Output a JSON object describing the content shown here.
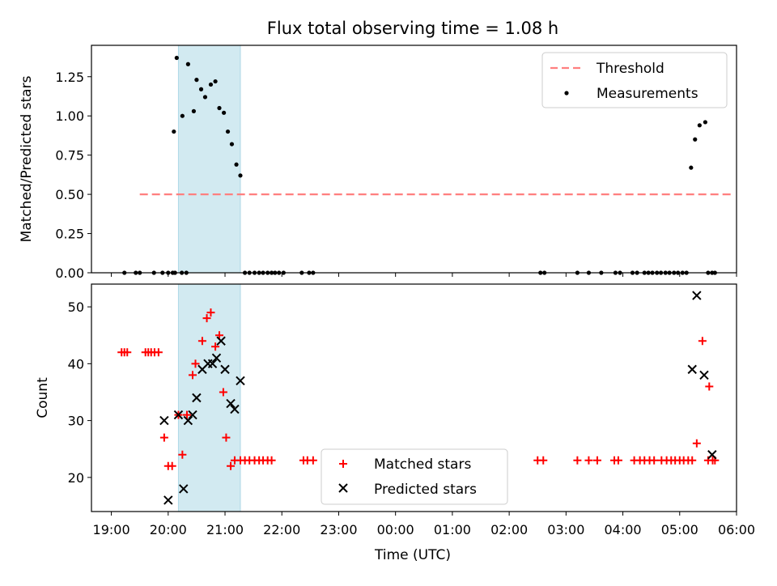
{
  "figure": {
    "title": "Flux total observing time = 1.08 h",
    "xlabel": "Time (UTC)"
  },
  "colors": {
    "threshold": "#ff7f7f",
    "measurements": "#000000",
    "matched": "#ff0000",
    "predicted": "#000000",
    "shade": "#add8e6"
  },
  "chart_data": [
    {
      "type": "scatter",
      "panel": "top",
      "ylabel": "Matched/Predicted stars",
      "x_unit": "hours since 19:00 UTC on the axis clock",
      "xlim": [
        -0.35,
        11.0
      ],
      "ylim": [
        0,
        1.45
      ],
      "x_ticks": [
        0,
        1,
        2,
        3,
        4,
        5,
        6,
        7,
        8,
        9,
        10,
        11
      ],
      "x_tick_labels": [
        "19:00",
        "20:00",
        "21:00",
        "22:00",
        "23:00",
        "00:00",
        "01:00",
        "02:00",
        "03:00",
        "04:00",
        "05:00",
        "06:00"
      ],
      "y_ticks": [
        0,
        0.25,
        0.5,
        0.75,
        1.0,
        1.25
      ],
      "y_tick_labels": [
        "0.00",
        "0.25",
        "0.50",
        "0.75",
        "1.00",
        "1.25"
      ],
      "shaded_span": [
        1.18,
        2.27
      ],
      "legend": {
        "position": "top-right",
        "entries": [
          "Threshold",
          "Measurements"
        ]
      },
      "threshold": {
        "name": "Threshold",
        "y": 0.5,
        "x": [
          0.5,
          10.9
        ]
      },
      "series": [
        {
          "name": "Measurements",
          "x": [
            0.23,
            0.43,
            0.5,
            0.75,
            0.9,
            1.0,
            1.08,
            1.12,
            1.24,
            1.32,
            1.1,
            1.15,
            1.25,
            1.35,
            1.45,
            1.5,
            1.58,
            1.65,
            1.75,
            1.83,
            1.9,
            1.98,
            2.05,
            2.12,
            2.2,
            2.27,
            2.35,
            2.43,
            2.52,
            2.6,
            2.67,
            2.75,
            2.82,
            2.88,
            2.95,
            3.03,
            3.35,
            3.48,
            3.55,
            7.55,
            7.62,
            8.2,
            8.4,
            8.62,
            8.87,
            8.95,
            9.17,
            9.25,
            9.38,
            9.45,
            9.52,
            9.6,
            9.67,
            9.75,
            9.82,
            9.9,
            9.97,
            10.05,
            10.12,
            10.2,
            10.27,
            10.35,
            10.45,
            10.5,
            10.57,
            10.62
          ],
          "y": [
            0,
            0,
            0,
            0,
            0,
            0,
            0,
            0,
            0,
            0,
            0.9,
            1.37,
            1.0,
            1.33,
            1.03,
            1.23,
            1.17,
            1.12,
            1.2,
            1.22,
            1.05,
            1.02,
            0.9,
            0.82,
            0.69,
            0.62,
            0,
            0,
            0,
            0,
            0,
            0,
            0,
            0,
            0,
            0,
            0,
            0,
            0,
            0,
            0,
            0,
            0,
            0,
            0,
            0,
            0,
            0,
            0,
            0,
            0,
            0,
            0,
            0,
            0,
            0,
            0,
            0,
            0,
            0.67,
            0.85,
            0.94,
            0.96,
            0,
            0,
            0
          ]
        }
      ]
    },
    {
      "type": "scatter",
      "panel": "bottom",
      "ylabel": "Count",
      "xlim": [
        -0.35,
        11.0
      ],
      "ylim": [
        14,
        54
      ],
      "x_ticks": [
        0,
        1,
        2,
        3,
        4,
        5,
        6,
        7,
        8,
        9,
        10,
        11
      ],
      "x_tick_labels": [
        "19:00",
        "20:00",
        "21:00",
        "22:00",
        "23:00",
        "00:00",
        "01:00",
        "02:00",
        "03:00",
        "04:00",
        "05:00",
        "06:00"
      ],
      "y_ticks": [
        20,
        30,
        40,
        50
      ],
      "y_tick_labels": [
        "20",
        "30",
        "40",
        "50"
      ],
      "shaded_span": [
        1.18,
        2.27
      ],
      "legend": {
        "position": "lower-center",
        "entries": [
          "Matched stars",
          "Predicted stars"
        ]
      },
      "series": [
        {
          "name": "Matched stars",
          "marker": "plus",
          "x": [
            0.18,
            0.23,
            0.28,
            0.6,
            0.65,
            0.7,
            0.76,
            0.83,
            0.93,
            1.0,
            1.07,
            1.18,
            1.25,
            1.33,
            1.43,
            1.48,
            1.6,
            1.68,
            1.75,
            1.83,
            1.9,
            1.97,
            2.02,
            2.1,
            2.17,
            2.27,
            2.35,
            2.43,
            2.52,
            2.6,
            2.67,
            2.75,
            2.82,
            3.38,
            3.45,
            3.55,
            7.5,
            7.6,
            8.2,
            8.4,
            8.55,
            8.85,
            8.92,
            9.2,
            9.3,
            9.38,
            9.47,
            9.55,
            9.68,
            9.77,
            9.85,
            9.92,
            10.0,
            10.07,
            10.15,
            10.22,
            10.3,
            10.4,
            10.52,
            10.5,
            10.58,
            10.62
          ],
          "y": [
            42,
            42,
            42,
            42,
            42,
            42,
            42,
            42,
            27,
            22,
            22,
            31,
            24,
            31,
            38,
            40,
            44,
            48,
            49,
            43,
            45,
            35,
            27,
            22,
            23,
            23,
            23,
            23,
            23,
            23,
            23,
            23,
            23,
            23,
            23,
            23,
            23,
            23,
            23,
            23,
            23,
            23,
            23,
            23,
            23,
            23,
            23,
            23,
            23,
            23,
            23,
            23,
            23,
            23,
            23,
            23,
            26,
            44,
            36,
            23,
            23,
            23
          ]
        },
        {
          "name": "Predicted stars",
          "marker": "x",
          "x": [
            0.93,
            1.0,
            1.18,
            1.27,
            1.35,
            1.43,
            1.5,
            1.6,
            1.7,
            1.78,
            1.85,
            1.93,
            2.0,
            2.1,
            2.17,
            2.27,
            10.22,
            10.3,
            10.43,
            10.57
          ],
          "y": [
            30,
            16,
            31,
            18,
            30,
            31,
            34,
            39,
            40,
            40,
            41,
            44,
            39,
            33,
            32,
            37,
            39,
            52,
            38,
            24
          ]
        }
      ]
    }
  ]
}
